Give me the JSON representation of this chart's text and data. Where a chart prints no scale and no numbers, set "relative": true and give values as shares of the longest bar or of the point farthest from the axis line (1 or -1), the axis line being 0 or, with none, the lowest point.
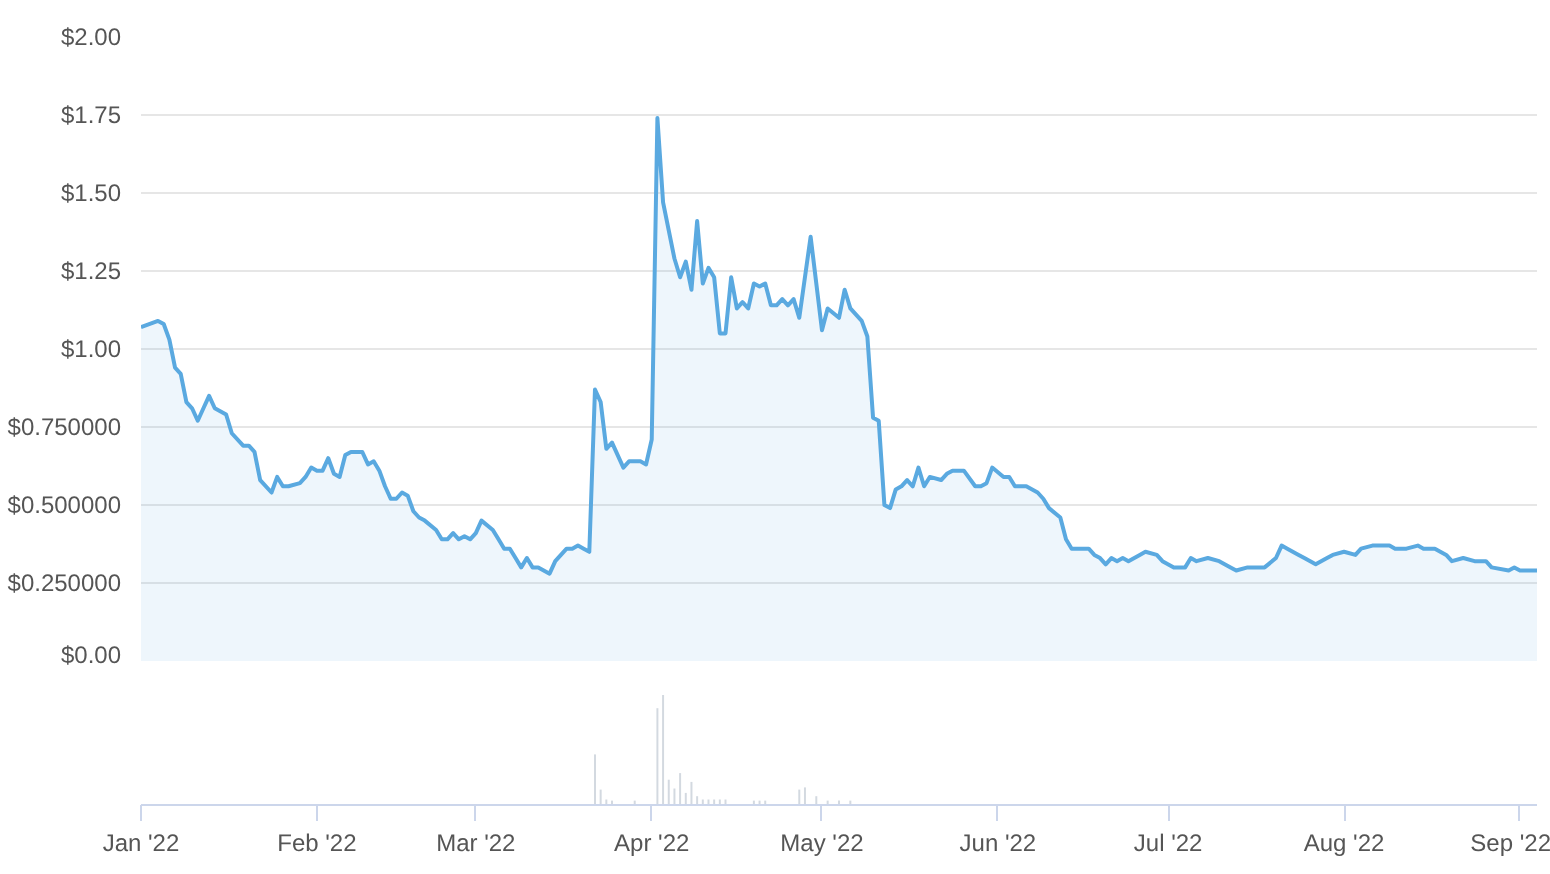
{
  "chart_data": [
    {
      "type": "area",
      "color": "#5aa9e0",
      "grid": "y",
      "tick_labels": "y",
      "xlim": [
        "2022-01-01",
        "2022-09-04"
      ],
      "ylim": [
        0,
        2
      ],
      "yticks": [
        {
          "value": 0,
          "label": "$0.00"
        },
        {
          "value": 0.25,
          "label": "$0.250000"
        },
        {
          "value": 0.5,
          "label": "$0.500000"
        },
        {
          "value": 0.75,
          "label": "$0.750000"
        },
        {
          "value": 1,
          "label": "$1.00"
        },
        {
          "value": 1.25,
          "label": "$1.25"
        },
        {
          "value": 1.5,
          "label": "$1.50"
        },
        {
          "value": 1.75,
          "label": "$1.75"
        },
        {
          "value": 2,
          "label": "$2.00"
        }
      ],
      "x": [
        "2022-01-01",
        "2022-01-04",
        "2022-01-05",
        "2022-01-06",
        "2022-01-07",
        "2022-01-08",
        "2022-01-09",
        "2022-01-10",
        "2022-01-11",
        "2022-01-12",
        "2022-01-13",
        "2022-01-14",
        "2022-01-16",
        "2022-01-17",
        "2022-01-19",
        "2022-01-20",
        "2022-01-21",
        "2022-01-22",
        "2022-01-24",
        "2022-01-25",
        "2022-01-26",
        "2022-01-27",
        "2022-01-29",
        "2022-01-30",
        "2022-01-31",
        "2022-02-01",
        "2022-02-02",
        "2022-02-03",
        "2022-02-04",
        "2022-02-05",
        "2022-02-06",
        "2022-02-07",
        "2022-02-09",
        "2022-02-10",
        "2022-02-11",
        "2022-02-12",
        "2022-02-13",
        "2022-02-14",
        "2022-02-15",
        "2022-02-16",
        "2022-02-17",
        "2022-02-18",
        "2022-02-19",
        "2022-02-20",
        "2022-02-22",
        "2022-02-23",
        "2022-02-24",
        "2022-02-25",
        "2022-02-26",
        "2022-02-27",
        "2022-02-28",
        "2022-03-01",
        "2022-03-02",
        "2022-03-04",
        "2022-03-05",
        "2022-03-06",
        "2022-03-07",
        "2022-03-08",
        "2022-03-09",
        "2022-03-10",
        "2022-03-11",
        "2022-03-12",
        "2022-03-14",
        "2022-03-15",
        "2022-03-16",
        "2022-03-17",
        "2022-03-18",
        "2022-03-19",
        "2022-03-20",
        "2022-03-21",
        "2022-03-22",
        "2022-03-23",
        "2022-03-24",
        "2022-03-25",
        "2022-03-26",
        "2022-03-27",
        "2022-03-28",
        "2022-03-30",
        "2022-03-31",
        "2022-04-01",
        "2022-04-02",
        "2022-04-03",
        "2022-04-05",
        "2022-04-06",
        "2022-04-07",
        "2022-04-08",
        "2022-04-09",
        "2022-04-10",
        "2022-04-11",
        "2022-04-12",
        "2022-04-13",
        "2022-04-14",
        "2022-04-15",
        "2022-04-16",
        "2022-04-17",
        "2022-04-18",
        "2022-04-19",
        "2022-04-20",
        "2022-04-21",
        "2022-04-22",
        "2022-04-23",
        "2022-04-24",
        "2022-04-25",
        "2022-04-26",
        "2022-04-27",
        "2022-04-29",
        "2022-04-30",
        "2022-05-01",
        "2022-05-02",
        "2022-05-04",
        "2022-05-05",
        "2022-05-06",
        "2022-05-08",
        "2022-05-09",
        "2022-05-10",
        "2022-05-11",
        "2022-05-12",
        "2022-05-13",
        "2022-05-14",
        "2022-05-15",
        "2022-05-16",
        "2022-05-17",
        "2022-05-18",
        "2022-05-19",
        "2022-05-20",
        "2022-05-22",
        "2022-05-23",
        "2022-05-24",
        "2022-05-26",
        "2022-05-28",
        "2022-05-29",
        "2022-05-30",
        "2022-05-31",
        "2022-06-02",
        "2022-06-03",
        "2022-06-04",
        "2022-06-06",
        "2022-06-08",
        "2022-06-09",
        "2022-06-10",
        "2022-06-12",
        "2022-06-13",
        "2022-06-14",
        "2022-06-16",
        "2022-06-17",
        "2022-06-18",
        "2022-06-19",
        "2022-06-20",
        "2022-06-21",
        "2022-06-22",
        "2022-06-23",
        "2022-06-24",
        "2022-06-26",
        "2022-06-27",
        "2022-06-29",
        "2022-06-30",
        "2022-07-02",
        "2022-07-04",
        "2022-07-05",
        "2022-07-06",
        "2022-07-08",
        "2022-07-10",
        "2022-07-12",
        "2022-07-13",
        "2022-07-15",
        "2022-07-16",
        "2022-07-18",
        "2022-07-20",
        "2022-07-21",
        "2022-07-22",
        "2022-07-24",
        "2022-07-25",
        "2022-07-27",
        "2022-07-29",
        "2022-07-30",
        "2022-08-01",
        "2022-08-03",
        "2022-08-04",
        "2022-08-06",
        "2022-08-09",
        "2022-08-10",
        "2022-08-12",
        "2022-08-14",
        "2022-08-15",
        "2022-08-17",
        "2022-08-19",
        "2022-08-20",
        "2022-08-22",
        "2022-08-24",
        "2022-08-26",
        "2022-08-27",
        "2022-08-30",
        "2022-08-31",
        "2022-09-01",
        "2022-09-04"
      ],
      "values": [
        1.07,
        1.09,
        1.08,
        1.03,
        0.94,
        0.92,
        0.83,
        0.81,
        0.77,
        0.81,
        0.85,
        0.81,
        0.79,
        0.73,
        0.69,
        0.69,
        0.67,
        0.58,
        0.54,
        0.59,
        0.56,
        0.56,
        0.57,
        0.59,
        0.62,
        0.61,
        0.61,
        0.65,
        0.6,
        0.59,
        0.66,
        0.67,
        0.67,
        0.63,
        0.64,
        0.61,
        0.56,
        0.52,
        0.52,
        0.54,
        0.53,
        0.48,
        0.46,
        0.45,
        0.42,
        0.39,
        0.39,
        0.41,
        0.39,
        0.4,
        0.39,
        0.41,
        0.45,
        0.42,
        0.39,
        0.36,
        0.36,
        0.33,
        0.3,
        0.33,
        0.3,
        0.3,
        0.28,
        0.32,
        0.34,
        0.36,
        0.36,
        0.37,
        0.36,
        0.35,
        0.87,
        0.83,
        0.68,
        0.7,
        0.66,
        0.62,
        0.64,
        0.64,
        0.63,
        0.71,
        1.74,
        1.47,
        1.29,
        1.23,
        1.28,
        1.19,
        1.41,
        1.21,
        1.26,
        1.23,
        1.05,
        1.05,
        1.23,
        1.13,
        1.15,
        1.13,
        1.21,
        1.2,
        1.21,
        1.14,
        1.14,
        1.16,
        1.14,
        1.16,
        1.1,
        1.36,
        1.21,
        1.06,
        1.13,
        1.1,
        1.19,
        1.13,
        1.09,
        1.04,
        0.78,
        0.77,
        0.5,
        0.49,
        0.55,
        0.56,
        0.58,
        0.56,
        0.62,
        0.56,
        0.59,
        0.58,
        0.6,
        0.61,
        0.61,
        0.56,
        0.56,
        0.57,
        0.62,
        0.59,
        0.59,
        0.56,
        0.56,
        0.54,
        0.52,
        0.49,
        0.46,
        0.39,
        0.36,
        0.36,
        0.36,
        0.34,
        0.33,
        0.31,
        0.33,
        0.32,
        0.33,
        0.32,
        0.34,
        0.35,
        0.34,
        0.32,
        0.3,
        0.3,
        0.33,
        0.32,
        0.33,
        0.32,
        0.3,
        0.29,
        0.3,
        0.3,
        0.3,
        0.33,
        0.37,
        0.36,
        0.34,
        0.33,
        0.31,
        0.33,
        0.34,
        0.35,
        0.34,
        0.36,
        0.37,
        0.37,
        0.36,
        0.36,
        0.37,
        0.36,
        0.36,
        0.34,
        0.32,
        0.33,
        0.32,
        0.32,
        0.3,
        0.29,
        0.3,
        0.29,
        0.29
      ]
    },
    {
      "type": "bar",
      "color": "#d3d9e0",
      "relative": true,
      "tick_labels": "x",
      "xlim": [
        "2022-01-01",
        "2022-09-04"
      ],
      "xticks": [
        {
          "value": "2022-01-01",
          "label": "Jan '22"
        },
        {
          "value": "2022-02-01",
          "label": "Feb '22"
        },
        {
          "value": "2022-03-01",
          "label": "Mar '22"
        },
        {
          "value": "2022-04-01",
          "label": "Apr '22"
        },
        {
          "value": "2022-05-01",
          "label": "May '22"
        },
        {
          "value": "2022-06-01",
          "label": "Jun '22"
        },
        {
          "value": "2022-07-01",
          "label": "Jul '22"
        },
        {
          "value": "2022-08-01",
          "label": "Aug '22"
        },
        {
          "value": "2022-09-01",
          "label": "Sep '22"
        }
      ],
      "x": [
        "2022-03-22",
        "2022-03-23",
        "2022-03-24",
        "2022-03-25",
        "2022-03-29",
        "2022-04-02",
        "2022-04-03",
        "2022-04-04",
        "2022-04-05",
        "2022-04-06",
        "2022-04-07",
        "2022-04-08",
        "2022-04-09",
        "2022-04-10",
        "2022-04-11",
        "2022-04-12",
        "2022-04-13",
        "2022-04-14",
        "2022-04-19",
        "2022-04-20",
        "2022-04-21",
        "2022-04-27",
        "2022-04-28",
        "2022-04-30",
        "2022-05-02",
        "2022-05-04",
        "2022-05-06"
      ],
      "values": [
        0.46,
        0.14,
        0.05,
        0.04,
        0.04,
        0.88,
        1,
        0.23,
        0.15,
        0.29,
        0.11,
        0.21,
        0.08,
        0.05,
        0.05,
        0.05,
        0.05,
        0.05,
        0.04,
        0.04,
        0.04,
        0.14,
        0.16,
        0.08,
        0.04,
        0.04,
        0.04
      ]
    }
  ]
}
